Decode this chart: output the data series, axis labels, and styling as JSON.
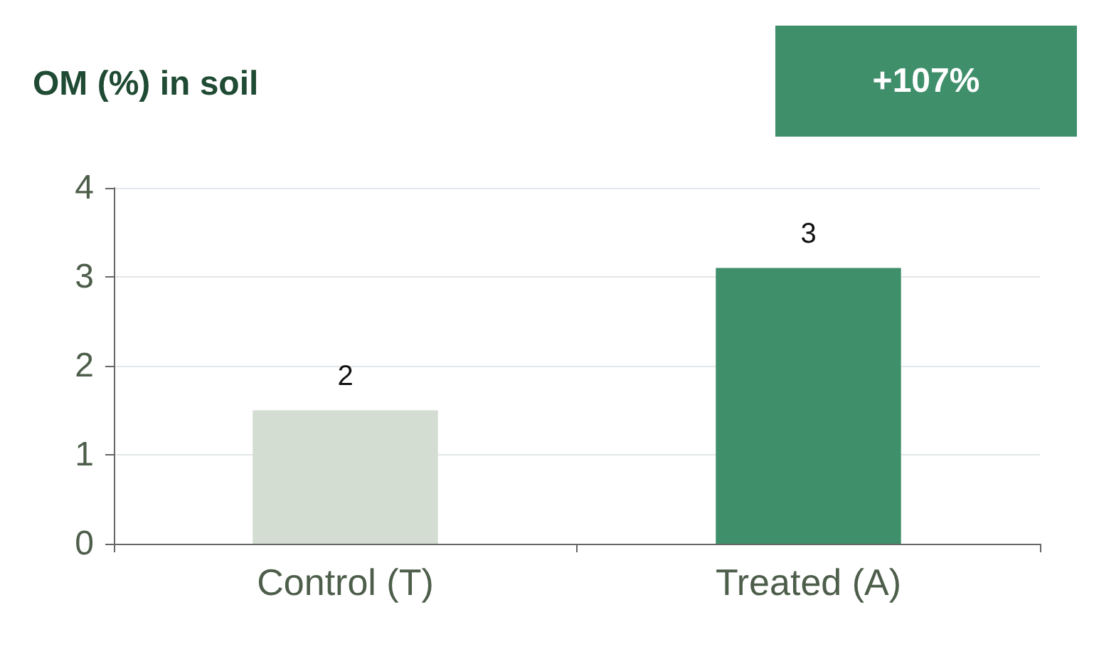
{
  "chart_data": {
    "type": "bar",
    "title": "OM (%) in soil",
    "annotations": [
      "+107%"
    ],
    "categories": [
      "Control (T)",
      "Treated (A)"
    ],
    "values": [
      1.5,
      3.1
    ],
    "colors": [
      "#d3ddd2",
      "#3f8f6b"
    ],
    "value_labels": [
      "2",
      "3"
    ],
    "ylim": [
      0,
      4
    ],
    "yticks": [
      0,
      1,
      2,
      3,
      4
    ],
    "grid": "y"
  }
}
